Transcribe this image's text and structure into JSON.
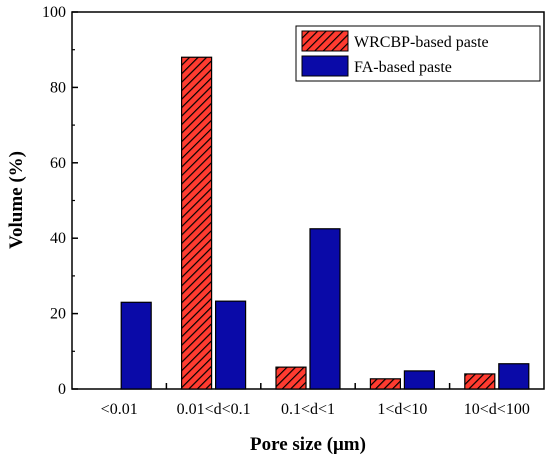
{
  "chart_data": {
    "type": "bar",
    "title": "",
    "xlabel": "Pore size (μm)",
    "ylabel": "Volume (%)",
    "ylim": [
      0,
      100
    ],
    "yticks": [
      0,
      20,
      40,
      60,
      80,
      100
    ],
    "categories": [
      "<0.01",
      "0.01<d<0.1",
      "0.1<d<1",
      "1<d<10",
      "10<d<100"
    ],
    "series": [
      {
        "name": "WRCBP-based paste",
        "values": [
          0,
          88,
          5.8,
          2.7,
          4
        ],
        "color": "#ff3b30",
        "hatch": "diagonal"
      },
      {
        "name": "FA-based paste",
        "values": [
          23,
          23.3,
          42.5,
          4.8,
          6.7
        ],
        "color": "#0a0aa8",
        "hatch": "none"
      }
    ],
    "grid": false,
    "legend": "top-right"
  }
}
